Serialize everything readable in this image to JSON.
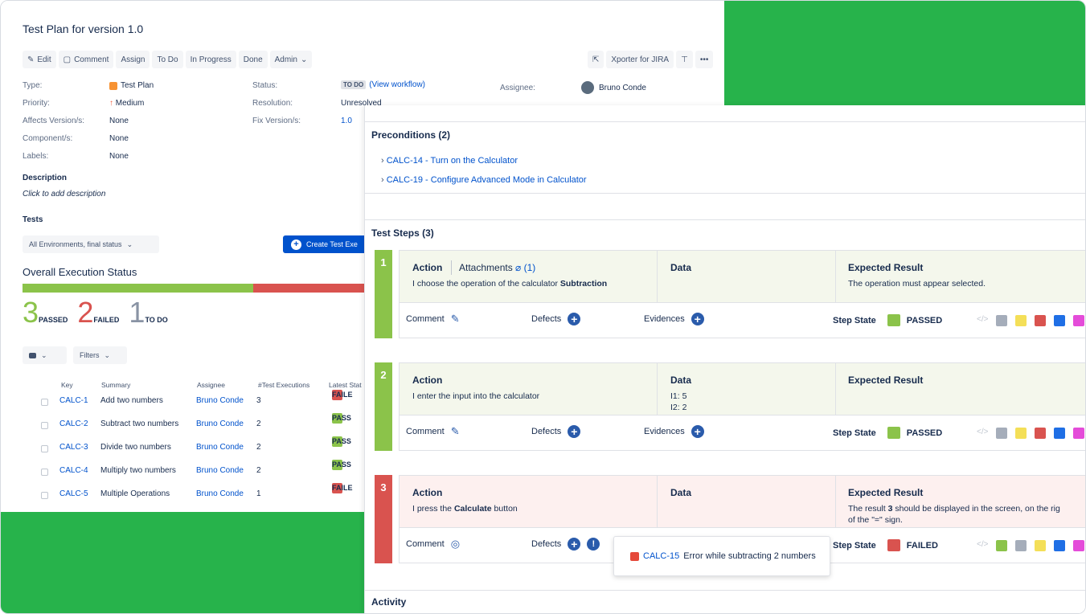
{
  "plan": {
    "title": "Test Plan for version 1.0",
    "toolbar": {
      "edit": "Edit",
      "comment": "Comment",
      "assign": "Assign",
      "todo": "To Do",
      "in_progress": "In Progress",
      "done": "Done",
      "admin": "Admin",
      "xporter": "Xporter for JIRA"
    },
    "fields": {
      "type_label": "Type:",
      "type_value": "Test Plan",
      "priority_label": "Priority:",
      "priority_value": "Medium",
      "affects_label": "Affects Version/s:",
      "affects_value": "None",
      "component_label": "Component/s:",
      "component_value": "None",
      "labels_label": "Labels:",
      "labels_value": "None",
      "status_label": "Status:",
      "status_value": "TO DO",
      "workflow_link": "(View workflow)",
      "resolution_label": "Resolution:",
      "resolution_value": "Unresolved",
      "fix_label": "Fix Version/s:",
      "fix_value": "1.0",
      "assignee_label": "Assignee:",
      "assignee_value": "Bruno Conde"
    },
    "description_label": "Description",
    "description_placeholder": "Click to add description",
    "tests_label": "Tests",
    "env_filter": "All Environments, final status",
    "create_button": "Create Test Exe",
    "overall_title": "Overall Execution Status",
    "overall": {
      "passed": 3,
      "failed": 2,
      "todo": 1,
      "passed_label": "PASSED",
      "failed_label": "FAILED",
      "todo_label": "TO DO"
    },
    "filters_label": "Filters",
    "columns": [
      "Key",
      "Summary",
      "Assignee",
      "#Test Executions",
      "Latest Stat"
    ],
    "rows": [
      {
        "key": "CALC-1",
        "summary": "Add two numbers",
        "assignee": "Bruno Conde",
        "executions": "3",
        "status": "FAILE"
      },
      {
        "key": "CALC-2",
        "summary": "Subtract two numbers",
        "assignee": "Bruno Conde",
        "executions": "2",
        "status": "PASS"
      },
      {
        "key": "CALC-3",
        "summary": "Divide two numbers",
        "assignee": "Bruno Conde",
        "executions": "2",
        "status": "PASS"
      },
      {
        "key": "CALC-4",
        "summary": "Multiply two numbers",
        "assignee": "Bruno Conde",
        "executions": "2",
        "status": "PASS"
      },
      {
        "key": "CALC-5",
        "summary": "Multiple Operations",
        "assignee": "Bruno Conde",
        "executions": "1",
        "status": "FAILE"
      }
    ]
  },
  "execution": {
    "preconditions_title": "Preconditions (2)",
    "preconditions": [
      "CALC-14 - Turn on the Calculator",
      "CALC-19 - Configure Advanced Mode in Calculator"
    ],
    "steps_title": "Test Steps (3)",
    "col_action": "Action",
    "col_attachments": "Attachments",
    "attachments_count": "(1)",
    "col_data": "Data",
    "col_expected": "Expected Result",
    "comment_label": "Comment",
    "defects_label": "Defects",
    "evidences_label": "Evidences",
    "step_state_label": "Step State",
    "steps": [
      {
        "num": "1",
        "action_pre": "I choose the operation of the calculator ",
        "action_bold": "Subtraction",
        "data1": "",
        "data2": "",
        "expected": "The operation must appear selected.",
        "state": "PASSED"
      },
      {
        "num": "2",
        "action_pre": "I enter the input into the calculator",
        "action_bold": "",
        "data1": "I1: 5",
        "data2": "I2: 2",
        "expected": "",
        "state": "PASSED"
      },
      {
        "num": "3",
        "action_pre": "I press the ",
        "action_bold": "Calculate",
        "action_post": " button",
        "data1": "",
        "data2": "",
        "expected_pre": "The result ",
        "expected_bold": "3",
        "expected_post": " should be displayed in the screen, on the rig",
        "expected_line2": "of the \"=\" sign.",
        "state": "FAILED"
      }
    ],
    "defect_popup": {
      "key": "CALC-15",
      "text": "Error while subtracting 2 numbers"
    },
    "activity_label": "Activity"
  },
  "colors": {
    "green": "#27b34b",
    "passed": "#8bc34a",
    "failed": "#d9534f",
    "link": "#0052cc"
  }
}
